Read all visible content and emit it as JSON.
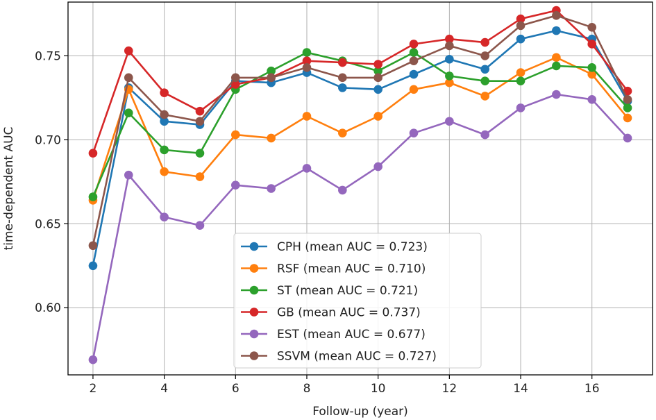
{
  "chart_data": {
    "type": "line",
    "title": "",
    "xlabel": "Follow-up (year)",
    "ylabel": "time-dependent AUC",
    "xlim": [
      1.3,
      17.7
    ],
    "ylim": [
      0.56,
      0.782
    ],
    "xticks": [
      2,
      4,
      6,
      8,
      10,
      12,
      14,
      16
    ],
    "xtick_labels": [
      "2",
      "4",
      "6",
      "8",
      "10",
      "12",
      "14",
      "16"
    ],
    "yticks": [
      0.6,
      0.65,
      0.7,
      0.75
    ],
    "ytick_labels": [
      "0.60",
      "0.65",
      "0.70",
      "0.75"
    ],
    "grid": true,
    "legend_position": "lower center",
    "x": [
      2,
      3,
      4,
      5,
      6,
      7,
      8,
      9,
      10,
      11,
      12,
      13,
      14,
      15,
      16,
      17
    ],
    "series": [
      {
        "name": "CPH",
        "label": "CPH (mean AUC = 0.723)",
        "color": "#1f77b4",
        "values": [
          0.625,
          0.731,
          0.711,
          0.709,
          0.735,
          0.734,
          0.74,
          0.731,
          0.73,
          0.739,
          0.748,
          0.742,
          0.76,
          0.765,
          0.76,
          0.723
        ]
      },
      {
        "name": "RSF",
        "label": "RSF (mean AUC = 0.710)",
        "color": "#ff7f0e",
        "values": [
          0.664,
          0.73,
          0.681,
          0.678,
          0.703,
          0.701,
          0.714,
          0.704,
          0.714,
          0.73,
          0.734,
          0.726,
          0.74,
          0.749,
          0.739,
          0.713
        ]
      },
      {
        "name": "ST",
        "label": "ST (mean AUC = 0.721)",
        "color": "#2ca02c",
        "values": [
          0.666,
          0.716,
          0.694,
          0.692,
          0.73,
          0.741,
          0.752,
          0.747,
          0.741,
          0.752,
          0.738,
          0.735,
          0.735,
          0.744,
          0.743,
          0.719
        ]
      },
      {
        "name": "GB",
        "label": "GB (mean AUC = 0.737)",
        "color": "#d62728",
        "values": [
          0.692,
          0.753,
          0.728,
          0.717,
          0.733,
          0.737,
          0.747,
          0.746,
          0.745,
          0.757,
          0.76,
          0.758,
          0.772,
          0.777,
          0.757,
          0.729
        ]
      },
      {
        "name": "EST",
        "label": "EST (mean AUC = 0.677)",
        "color": "#9467bd",
        "values": [
          0.569,
          0.679,
          0.654,
          0.649,
          0.673,
          0.671,
          0.683,
          0.67,
          0.684,
          0.704,
          0.711,
          0.703,
          0.719,
          0.727,
          0.724,
          0.701
        ]
      },
      {
        "name": "SSVM",
        "label": "SSVM (mean AUC = 0.727)",
        "color": "#8c564b",
        "values": [
          0.637,
          0.737,
          0.715,
          0.711,
          0.737,
          0.737,
          0.743,
          0.737,
          0.737,
          0.747,
          0.756,
          0.75,
          0.768,
          0.774,
          0.767,
          0.724
        ]
      }
    ]
  }
}
